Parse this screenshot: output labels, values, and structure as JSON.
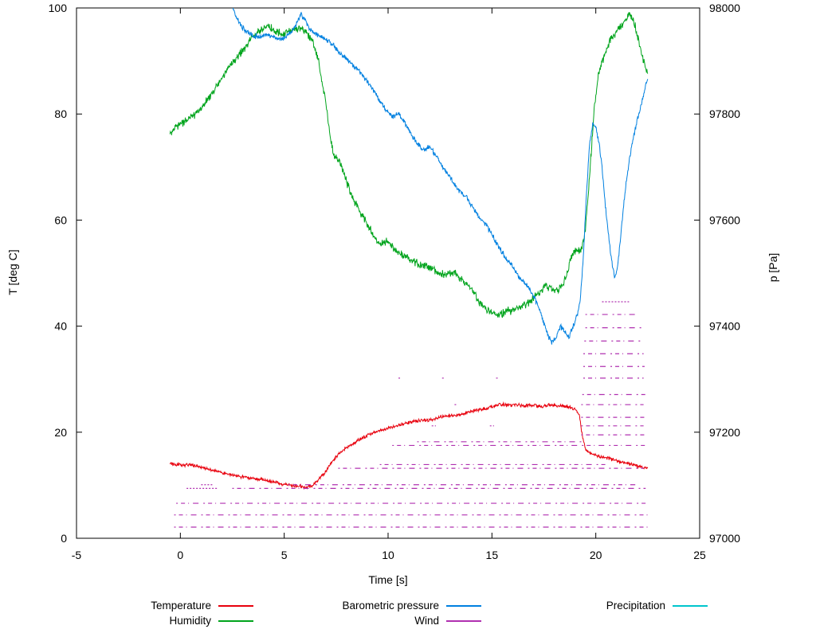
{
  "chart_data": {
    "type": "line",
    "title": "",
    "xlabel": "Time [s]",
    "ylabel": "T [deg C]",
    "y2label": "p [Pa]",
    "xlim": [
      -5,
      25
    ],
    "ylim": [
      0,
      100
    ],
    "y2lim": [
      97000,
      98000
    ],
    "xticks": [
      -5,
      0,
      5,
      10,
      15,
      20,
      25
    ],
    "yticks": [
      0,
      20,
      40,
      60,
      80,
      100
    ],
    "y2ticks": [
      97000,
      97200,
      97400,
      97600,
      97800,
      98000
    ],
    "grid": false,
    "legend_position": "bottom",
    "background": "#ffffff",
    "series": [
      {
        "name": "Temperature",
        "axis": "y1",
        "color": "#e8000d",
        "style": "line",
        "noise": 0.4,
        "points": [
          [
            -0.5,
            14.0
          ],
          [
            0,
            13.9
          ],
          [
            0.5,
            13.8
          ],
          [
            1,
            13.5
          ],
          [
            1.5,
            12.9
          ],
          [
            2,
            12.4
          ],
          [
            2.5,
            11.9
          ],
          [
            3,
            11.6
          ],
          [
            3.5,
            11.3
          ],
          [
            4,
            11.0
          ],
          [
            4.5,
            10.6
          ],
          [
            5,
            10.2
          ],
          [
            5.5,
            9.9
          ],
          [
            6,
            9.7
          ],
          [
            6.3,
            9.8
          ],
          [
            6.6,
            10.9
          ],
          [
            7,
            12.6
          ],
          [
            7.3,
            14.4
          ],
          [
            7.6,
            15.9
          ],
          [
            8,
            17.0
          ],
          [
            8.4,
            18.1
          ],
          [
            8.8,
            19.0
          ],
          [
            9.2,
            19.8
          ],
          [
            9.6,
            20.3
          ],
          [
            10,
            20.8
          ],
          [
            10.5,
            21.2
          ],
          [
            11,
            21.8
          ],
          [
            11.5,
            22.2
          ],
          [
            12,
            22.3
          ],
          [
            12.5,
            22.8
          ],
          [
            13,
            23.2
          ],
          [
            13.5,
            23.3
          ],
          [
            14,
            23.9
          ],
          [
            14.5,
            24.3
          ],
          [
            15,
            24.8
          ],
          [
            15.4,
            25.3
          ],
          [
            15.8,
            25.0
          ],
          [
            16.2,
            25.2
          ],
          [
            16.6,
            24.9
          ],
          [
            17,
            25.1
          ],
          [
            17.4,
            24.8
          ],
          [
            17.8,
            25.2
          ],
          [
            18.2,
            25.0
          ],
          [
            18.6,
            24.9
          ],
          [
            19,
            24.3
          ],
          [
            19.2,
            23.2
          ],
          [
            19.35,
            19.5
          ],
          [
            19.5,
            16.8
          ],
          [
            19.7,
            16.0
          ],
          [
            19.9,
            15.8
          ],
          [
            20.2,
            15.4
          ],
          [
            20.6,
            15.1
          ],
          [
            21,
            14.6
          ],
          [
            21.5,
            14.1
          ],
          [
            22,
            13.6
          ],
          [
            22.5,
            13.2
          ]
        ]
      },
      {
        "name": "Humidity",
        "axis": "y1",
        "color": "#00a41c",
        "style": "line",
        "noise": 0.9,
        "points": [
          [
            -0.5,
            76.2
          ],
          [
            -0.2,
            77.6
          ],
          [
            0,
            78.1
          ],
          [
            0.3,
            79.0
          ],
          [
            0.6,
            79.6
          ],
          [
            1,
            81.1
          ],
          [
            1.4,
            83.2
          ],
          [
            1.8,
            85.6
          ],
          [
            2.2,
            88.0
          ],
          [
            2.6,
            90.1
          ],
          [
            3,
            92.0
          ],
          [
            3.4,
            94.0
          ],
          [
            3.8,
            95.6
          ],
          [
            4.2,
            96.6
          ],
          [
            4.6,
            95.6
          ],
          [
            5,
            95.1
          ],
          [
            5.4,
            95.9
          ],
          [
            5.8,
            96.3
          ],
          [
            6.1,
            95.2
          ],
          [
            6.4,
            93.6
          ],
          [
            6.7,
            89.0
          ],
          [
            7,
            82.0
          ],
          [
            7.2,
            76.0
          ],
          [
            7.4,
            72.2
          ],
          [
            7.7,
            70.6
          ],
          [
            8,
            67.2
          ],
          [
            8.3,
            64.2
          ],
          [
            8.6,
            62.0
          ],
          [
            9,
            59.2
          ],
          [
            9.3,
            57.0
          ],
          [
            9.6,
            55.6
          ],
          [
            10,
            56.0
          ],
          [
            10.4,
            54.2
          ],
          [
            10.8,
            53.1
          ],
          [
            11.2,
            52.2
          ],
          [
            11.6,
            51.6
          ],
          [
            12,
            51.0
          ],
          [
            12.4,
            50.1
          ],
          [
            12.8,
            49.6
          ],
          [
            13.2,
            50.1
          ],
          [
            13.6,
            48.6
          ],
          [
            14,
            47.0
          ],
          [
            14.4,
            44.6
          ],
          [
            14.8,
            43.1
          ],
          [
            15.2,
            42.0
          ],
          [
            15.6,
            42.6
          ],
          [
            16,
            43.1
          ],
          [
            16.4,
            43.6
          ],
          [
            16.8,
            44.6
          ],
          [
            17.2,
            46.1
          ],
          [
            17.6,
            47.6
          ],
          [
            17.9,
            47.0
          ],
          [
            18.2,
            46.6
          ],
          [
            18.5,
            48.6
          ],
          [
            18.8,
            52.6
          ],
          [
            19,
            54.1
          ],
          [
            19.3,
            54.6
          ],
          [
            19.5,
            58.0
          ],
          [
            19.7,
            68.0
          ],
          [
            19.9,
            80.0
          ],
          [
            20.1,
            87.0
          ],
          [
            20.4,
            91.0
          ],
          [
            20.7,
            94.0
          ],
          [
            21,
            95.6
          ],
          [
            21.3,
            97.0
          ],
          [
            21.6,
            99.0
          ],
          [
            21.9,
            96.6
          ],
          [
            22.1,
            93.1
          ],
          [
            22.3,
            90.0
          ],
          [
            22.5,
            87.6
          ]
        ]
      },
      {
        "name": "Barometric pressure",
        "axis": "y2",
        "color": "#0080e0",
        "style": "line",
        "noise": 6,
        "points": [
          [
            2.4,
            98015
          ],
          [
            2.6,
            97992
          ],
          [
            2.8,
            97974
          ],
          [
            3.0,
            97962
          ],
          [
            3.2,
            97955
          ],
          [
            3.5,
            97948
          ],
          [
            3.8,
            97945
          ],
          [
            4.1,
            97950
          ],
          [
            4.4,
            97945
          ],
          [
            4.7,
            97942
          ],
          [
            5.0,
            97943
          ],
          [
            5.3,
            97952
          ],
          [
            5.6,
            97972
          ],
          [
            5.8,
            97988
          ],
          [
            6.0,
            97978
          ],
          [
            6.2,
            97962
          ],
          [
            6.5,
            97952
          ],
          [
            6.8,
            97946
          ],
          [
            7.1,
            97938
          ],
          [
            7.4,
            97928
          ],
          [
            7.7,
            97915
          ],
          [
            8.0,
            97902
          ],
          [
            8.3,
            97892
          ],
          [
            8.6,
            97882
          ],
          [
            9.0,
            97862
          ],
          [
            9.3,
            97845
          ],
          [
            9.6,
            97825
          ],
          [
            9.9,
            97808
          ],
          [
            10.2,
            97795
          ],
          [
            10.5,
            97802
          ],
          [
            10.8,
            97782
          ],
          [
            11.1,
            97762
          ],
          [
            11.4,
            97745
          ],
          [
            11.7,
            97732
          ],
          [
            12.0,
            97738
          ],
          [
            12.3,
            97722
          ],
          [
            12.6,
            97702
          ],
          [
            12.9,
            97685
          ],
          [
            13.2,
            97668
          ],
          [
            13.5,
            97652
          ],
          [
            13.8,
            97642
          ],
          [
            14.1,
            97622
          ],
          [
            14.4,
            97605
          ],
          [
            14.7,
            97592
          ],
          [
            15.0,
            97572
          ],
          [
            15.3,
            97552
          ],
          [
            15.6,
            97532
          ],
          [
            16.0,
            97512
          ],
          [
            16.3,
            97492
          ],
          [
            16.6,
            97481
          ],
          [
            17.0,
            97458
          ],
          [
            17.3,
            97430
          ],
          [
            17.5,
            97405
          ],
          [
            17.7,
            97382
          ],
          [
            17.9,
            97368
          ],
          [
            18.1,
            97379
          ],
          [
            18.3,
            97399
          ],
          [
            18.5,
            97391
          ],
          [
            18.7,
            97379
          ],
          [
            18.9,
            97399
          ],
          [
            19.1,
            97421
          ],
          [
            19.25,
            97449
          ],
          [
            19.4,
            97531
          ],
          [
            19.55,
            97651
          ],
          [
            19.7,
            97741
          ],
          [
            19.85,
            97783
          ],
          [
            20.0,
            97776
          ],
          [
            20.15,
            97746
          ],
          [
            20.3,
            97701
          ],
          [
            20.5,
            97611
          ],
          [
            20.7,
            97541
          ],
          [
            20.9,
            97492
          ],
          [
            21.05,
            97511
          ],
          [
            21.2,
            97571
          ],
          [
            21.4,
            97651
          ],
          [
            21.6,
            97711
          ],
          [
            21.8,
            97756
          ],
          [
            22.0,
            97789
          ],
          [
            22.2,
            97819
          ],
          [
            22.35,
            97846
          ],
          [
            22.5,
            97866
          ]
        ]
      },
      {
        "name": "Wind",
        "axis": "y1",
        "color": "#b030b0",
        "style": "dashes",
        "segments": [
          [
            -0.3,
            22.6,
            2.1
          ],
          [
            -0.3,
            22.6,
            4.4
          ],
          [
            -0.2,
            22.5,
            6.6
          ],
          [
            0.3,
            1.8,
            9.4
          ],
          [
            2.5,
            22.4,
            9.4
          ],
          [
            1.0,
            1.6,
            10.1
          ],
          [
            5.2,
            21.9,
            10.1
          ],
          [
            7.6,
            22.3,
            13.2
          ],
          [
            9.6,
            20.6,
            13.9
          ],
          [
            10.2,
            22.4,
            17.5
          ],
          [
            11.4,
            19.4,
            18.2
          ],
          [
            19.3,
            22.4,
            19.5
          ],
          [
            12.1,
            12.3,
            21.2
          ],
          [
            14.9,
            15.1,
            21.2
          ],
          [
            19.3,
            22.3,
            21.2
          ],
          [
            19.3,
            22.4,
            22.8
          ],
          [
            13.2,
            13.35,
            25.2
          ],
          [
            19.3,
            22.3,
            25.2
          ],
          [
            19.35,
            22.4,
            27.1
          ],
          [
            10.5,
            10.65,
            30.2
          ],
          [
            12.6,
            12.75,
            30.2
          ],
          [
            15.2,
            15.35,
            30.2
          ],
          [
            19.4,
            22.3,
            30.2
          ],
          [
            19.4,
            22.35,
            32.4
          ],
          [
            19.4,
            22.3,
            34.8
          ],
          [
            19.45,
            22.2,
            37.2
          ],
          [
            19.5,
            22.3,
            39.7
          ],
          [
            19.5,
            21.9,
            42.2
          ],
          [
            20.3,
            21.6,
            44.6
          ]
        ]
      },
      {
        "name": "Precipitation",
        "axis": "y1",
        "color": "#00c5cd",
        "style": "line",
        "noise": 0,
        "points": []
      }
    ]
  }
}
